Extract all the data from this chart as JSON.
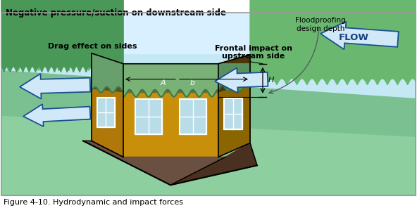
{
  "title_text": "Figure 4-10. Hydrodynamic and impact forces",
  "neg_pressure_label": "Negative pressure/suction on downstream side",
  "floodproofing_label": "Floodproofing\ndesign depth",
  "H_label": "H",
  "drag_label": "Drag effect on sides",
  "frontal_label": "Frontal impact on\nupstream side",
  "flow_label": "FLOW",
  "A_label": "A",
  "b_label": "b",
  "sky_color": "#c5e8f5",
  "sky_top_color": "#d8f0ff",
  "ground_light": "#8ecfa0",
  "ground_mid": "#7ac090",
  "ground_dark": "#5aaa78",
  "tree_color": "#6ab870",
  "tree_dark": "#4a9858",
  "house_front_color": "#c8900a",
  "house_side_color": "#8a6500",
  "house_front_lower": "#7a6020",
  "house_side_lower": "#5a4810",
  "house_roof_color": "#6a5040",
  "house_roof_side": "#4a3020",
  "flood_front_color": "#7aba80",
  "flood_side_color": "#5a9a68",
  "arrow_fill": "#d0e8f8",
  "arrow_edge": "#1a5090",
  "window_color": "#b8dde8",
  "window_tint": "#90c8d8",
  "border_color": "#999999"
}
